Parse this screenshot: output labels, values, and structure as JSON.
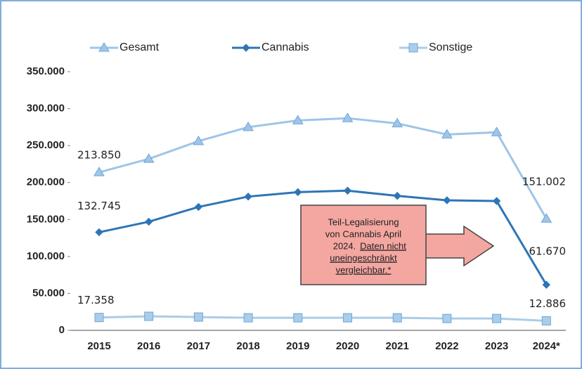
{
  "chart_data": {
    "type": "line",
    "categories": [
      "2015",
      "2016",
      "2017",
      "2018",
      "2019",
      "2020",
      "2021",
      "2022",
      "2023",
      "2024*"
    ],
    "series": [
      {
        "name": "Gesamt",
        "color": "#9fc5e8",
        "marker": "triangle",
        "values": [
          213850,
          232000,
          256000,
          275000,
          284000,
          287000,
          280000,
          265000,
          268000,
          151002
        ],
        "value_labels": [
          "213.850",
          null,
          null,
          null,
          null,
          null,
          null,
          null,
          null,
          "151.002"
        ]
      },
      {
        "name": "Cannabis",
        "color": "#2e75b6",
        "marker": "diamond",
        "values": [
          132745,
          147000,
          167000,
          181000,
          187000,
          189000,
          182000,
          176000,
          175000,
          61670
        ],
        "value_labels": [
          "132.745",
          null,
          null,
          null,
          null,
          null,
          null,
          null,
          null,
          "61.670"
        ]
      },
      {
        "name": "Sonstige",
        "color": "#a9cdea",
        "marker": "square",
        "values": [
          17358,
          19000,
          18000,
          17000,
          17000,
          17000,
          17000,
          16000,
          16000,
          12886
        ],
        "value_labels": [
          "17.358",
          null,
          null,
          null,
          null,
          null,
          null,
          null,
          null,
          "12.886"
        ]
      }
    ],
    "ylim": [
      0,
      350000
    ],
    "yticks": [
      0,
      {
        "value": 50000,
        "label": "50.000"
      },
      {
        "value": 100000,
        "label": "100.000"
      },
      {
        "value": 150000,
        "label": "150.000"
      },
      {
        "value": 200000,
        "label": "200.000"
      },
      {
        "value": 250000,
        "label": "250.000"
      },
      {
        "value": 300000,
        "label": "300.000"
      },
      {
        "value": 350000,
        "label": "350.000"
      }
    ],
    "grid": false,
    "legend": "top",
    "annotation": [
      "Teil-Legalisierung",
      "von Cannabis April",
      "2024.",
      "Daten nicht",
      "uneingeschränkt",
      "vergleichbar.*"
    ]
  }
}
